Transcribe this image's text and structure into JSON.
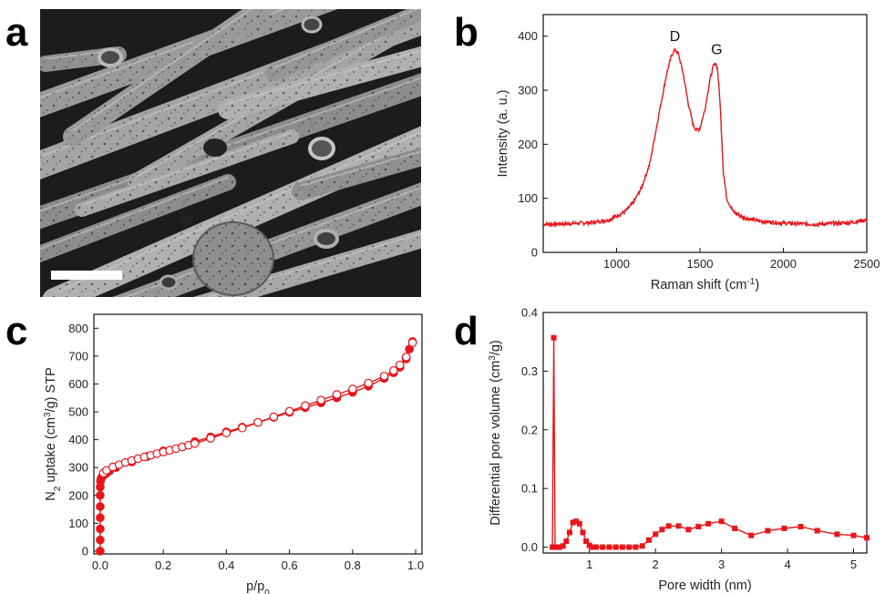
{
  "panels": {
    "a": {
      "letter": "a"
    },
    "b": {
      "letter": "b"
    },
    "c": {
      "letter": "c"
    },
    "d": {
      "letter": "d"
    }
  },
  "chart_data": [
    {
      "panel": "b",
      "type": "line",
      "title": "",
      "xlabel": "Raman shift (cm",
      "xlabel_sup": "-1",
      "xlabel_end": ")",
      "ylabel": "Intensity (a. u.)",
      "xlim": [
        560,
        2500
      ],
      "ylim": [
        0,
        440
      ],
      "xticks": [
        1000,
        1500,
        2000,
        2500
      ],
      "yticks": [
        0,
        100,
        200,
        300,
        400
      ],
      "color": "#e8161b",
      "annotations": [
        {
          "text": "D",
          "x": 1350,
          "y": 378
        },
        {
          "text": "G",
          "x": 1600,
          "y": 353
        }
      ],
      "series": [
        {
          "x": [
            560,
            700,
            850,
            950,
            1050,
            1100,
            1150,
            1200,
            1250,
            1300,
            1330,
            1350,
            1370,
            1400,
            1430,
            1460,
            1480,
            1500,
            1530,
            1560,
            1580,
            1595,
            1605,
            1620,
            1640,
            1660,
            1700,
            1760,
            1850,
            2000,
            2200,
            2400,
            2500
          ],
          "y": [
            52,
            53,
            55,
            60,
            75,
            92,
            120,
            165,
            250,
            330,
            365,
            375,
            368,
            330,
            275,
            235,
            226,
            230,
            265,
            320,
            345,
            350,
            340,
            280,
            150,
            100,
            75,
            65,
            58,
            54,
            52,
            55,
            60
          ]
        }
      ]
    },
    {
      "panel": "c",
      "type": "scatter",
      "title": "",
      "xlabel": "p/p",
      "xlabel_sub": "0",
      "ylabel": "N",
      "ylabel_sub": "2",
      "ylabel_mid": " uptake (cm",
      "ylabel_sup": "3",
      "ylabel_end": "/g) STP",
      "xlim": [
        -0.02,
        1.02
      ],
      "ylim": [
        -10,
        850
      ],
      "xticks": [
        "0.0",
        "0.2",
        "0.4",
        "0.6",
        "0.8",
        "1.0"
      ],
      "yticks": [
        0,
        100,
        200,
        300,
        400,
        500,
        600,
        700,
        800
      ],
      "color": "#e8161b",
      "series": [
        {
          "name": "",
          "marker": "filled-circle",
          "x": [
            0.0,
            0.0,
            0.0,
            0.0,
            0.0,
            0.0,
            0.0,
            0.001,
            0.002,
            0.004,
            0.007,
            0.01,
            0.015,
            0.02,
            0.03,
            0.05,
            0.1,
            0.15,
            0.2,
            0.3,
            0.35,
            0.4,
            0.45,
            0.5,
            0.55,
            0.6,
            0.65,
            0.7,
            0.75,
            0.8,
            0.85,
            0.9,
            0.93,
            0.95,
            0.97,
            0.98,
            0.99
          ],
          "y": [
            0,
            40,
            80,
            120,
            160,
            200,
            230,
            250,
            258,
            263,
            268,
            272,
            276,
            280,
            288,
            300,
            320,
            340,
            360,
            393,
            410,
            428,
            445,
            462,
            480,
            498,
            515,
            532,
            550,
            570,
            592,
            620,
            640,
            660,
            690,
            725,
            752
          ]
        },
        {
          "name": "",
          "marker": "open-circle",
          "x": [
            0.01,
            0.02,
            0.04,
            0.06,
            0.08,
            0.1,
            0.12,
            0.14,
            0.16,
            0.18,
            0.2,
            0.22,
            0.24,
            0.26,
            0.28,
            0.3,
            0.35,
            0.4,
            0.45,
            0.5,
            0.55,
            0.6,
            0.65,
            0.7,
            0.75,
            0.8,
            0.85,
            0.9,
            0.93,
            0.95,
            0.97,
            0.99
          ],
          "y": [
            280,
            290,
            302,
            310,
            318,
            325,
            332,
            338,
            344,
            350,
            356,
            362,
            368,
            374,
            380,
            386,
            405,
            424,
            442,
            462,
            482,
            502,
            522,
            542,
            562,
            582,
            603,
            628,
            648,
            668,
            697,
            748
          ]
        }
      ]
    },
    {
      "panel": "d",
      "type": "line",
      "title": "",
      "xlabel": "Pore width (nm)",
      "ylabel": "Differential pore volume (cm",
      "ylabel_sup": "3",
      "ylabel_end": "/g)",
      "xlim": [
        0.3,
        5.2
      ],
      "ylim": [
        -0.01,
        0.4
      ],
      "xticks": [
        1,
        2,
        3,
        4,
        5
      ],
      "yticks": [
        "0.0",
        "0.1",
        "0.2",
        "0.3",
        "0.4"
      ],
      "color": "#e8161b",
      "marker": "filled-square",
      "series": [
        {
          "x": [
            0.44,
            0.46,
            0.48,
            0.5,
            0.55,
            0.6,
            0.65,
            0.7,
            0.75,
            0.8,
            0.85,
            0.9,
            0.95,
            1.0,
            1.05,
            1.1,
            1.2,
            1.3,
            1.4,
            1.5,
            1.6,
            1.7,
            1.8,
            1.9,
            2.0,
            2.1,
            2.2,
            2.35,
            2.5,
            2.65,
            2.8,
            3.0,
            3.2,
            3.45,
            3.7,
            3.95,
            4.2,
            4.45,
            4.75,
            5.0,
            5.2
          ],
          "y": [
            0.0,
            0.357,
            0.0,
            0.0,
            0.0,
            0.002,
            0.01,
            0.025,
            0.042,
            0.044,
            0.04,
            0.025,
            0.01,
            0.003,
            0.0,
            0.0,
            0.0,
            0.0,
            0.0,
            0.0,
            0.0,
            0.0,
            0.002,
            0.012,
            0.022,
            0.03,
            0.036,
            0.036,
            0.03,
            0.035,
            0.04,
            0.044,
            0.032,
            0.02,
            0.028,
            0.032,
            0.035,
            0.028,
            0.022,
            0.02,
            0.016
          ]
        }
      ]
    }
  ]
}
